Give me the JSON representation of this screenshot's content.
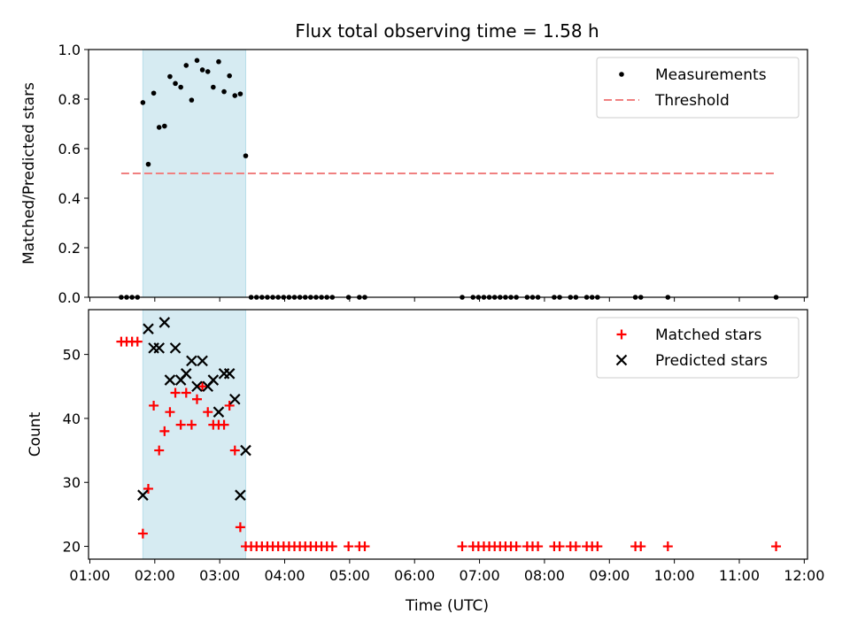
{
  "chart_data": {
    "title": "Flux total observing time = 1.58 h",
    "x_label": "Time (UTC)",
    "x_range": [
      "01:00",
      "12:00"
    ],
    "x_ticks": [
      "01:00",
      "02:00",
      "03:00",
      "04:00",
      "05:00",
      "06:00",
      "07:00",
      "08:00",
      "09:00",
      "10:00",
      "11:00",
      "12:00"
    ],
    "observing_span": {
      "start": "01:49",
      "end": "03:24",
      "color": "#add8e6"
    },
    "panels": [
      {
        "type": "scatter",
        "y_label": "Matched/Predicted stars",
        "ylim": [
          0,
          1.0
        ],
        "y_ticks": [
          "0.0",
          "0.2",
          "0.4",
          "0.6",
          "0.8",
          "1.0"
        ],
        "legend_position": "upper right",
        "series": [
          {
            "name": "Measurements",
            "marker": "dot",
            "color": "#000000",
            "points": [
              [
                "01:29",
                0
              ],
              [
                "01:34",
                0
              ],
              [
                "01:39",
                0
              ],
              [
                "01:44",
                0
              ],
              [
                "01:49",
                0.786
              ],
              [
                "01:54",
                0.537
              ],
              [
                "01:59",
                0.824
              ],
              [
                "02:04",
                0.686
              ],
              [
                "02:09",
                0.691
              ],
              [
                "02:14",
                0.891
              ],
              [
                "02:19",
                0.863
              ],
              [
                "02:24",
                0.848
              ],
              [
                "02:29",
                0.936
              ],
              [
                "02:34",
                0.796
              ],
              [
                "02:39",
                0.956
              ],
              [
                "02:44",
                0.918
              ],
              [
                "02:49",
                0.911
              ],
              [
                "02:54",
                0.848
              ],
              [
                "02:59",
                0.951
              ],
              [
                "03:04",
                0.83
              ],
              [
                "03:09",
                0.894
              ],
              [
                "03:14",
                0.814
              ],
              [
                "03:19",
                0.821
              ],
              [
                "03:24",
                0.571
              ],
              [
                "03:29",
                0
              ],
              [
                "03:34",
                0
              ],
              [
                "03:39",
                0
              ],
              [
                "03:44",
                0
              ],
              [
                "03:49",
                0
              ],
              [
                "03:54",
                0
              ],
              [
                "03:59",
                0
              ],
              [
                "04:04",
                0
              ],
              [
                "04:09",
                0
              ],
              [
                "04:14",
                0
              ],
              [
                "04:19",
                0
              ],
              [
                "04:24",
                0
              ],
              [
                "04:29",
                0
              ],
              [
                "04:34",
                0
              ],
              [
                "04:39",
                0
              ],
              [
                "04:44",
                0
              ],
              [
                "04:59",
                0
              ],
              [
                "05:09",
                0
              ],
              [
                "05:14",
                0
              ],
              [
                "06:44",
                0
              ],
              [
                "06:54",
                0
              ],
              [
                "06:59",
                0
              ],
              [
                "07:04",
                0
              ],
              [
                "07:09",
                0
              ],
              [
                "07:14",
                0
              ],
              [
                "07:19",
                0
              ],
              [
                "07:24",
                0
              ],
              [
                "07:29",
                0
              ],
              [
                "07:34",
                0
              ],
              [
                "07:44",
                0
              ],
              [
                "07:49",
                0
              ],
              [
                "07:54",
                0
              ],
              [
                "08:09",
                0
              ],
              [
                "08:14",
                0
              ],
              [
                "08:24",
                0
              ],
              [
                "08:29",
                0
              ],
              [
                "08:39",
                0
              ],
              [
                "08:44",
                0
              ],
              [
                "08:49",
                0
              ],
              [
                "09:24",
                0
              ],
              [
                "09:29",
                0
              ],
              [
                "09:54",
                0
              ],
              [
                "11:34",
                0
              ]
            ]
          },
          {
            "name": "Threshold",
            "marker": "dashed-line",
            "color": "#f08080",
            "points": [
              [
                "01:29",
                0.5
              ],
              [
                "11:34",
                0.5
              ]
            ]
          }
        ]
      },
      {
        "type": "scatter",
        "y_label": "Count",
        "ylim": [
          18,
          57
        ],
        "y_ticks": [
          "20",
          "30",
          "40",
          "50"
        ],
        "legend_position": "upper right",
        "series": [
          {
            "name": "Matched stars",
            "marker": "plus",
            "color": "#ff0000",
            "points": [
              [
                "01:29",
                52
              ],
              [
                "01:34",
                52
              ],
              [
                "01:39",
                52
              ],
              [
                "01:44",
                52
              ],
              [
                "01:49",
                22
              ],
              [
                "01:54",
                29
              ],
              [
                "01:59",
                42
              ],
              [
                "02:04",
                35
              ],
              [
                "02:09",
                38
              ],
              [
                "02:14",
                41
              ],
              [
                "02:19",
                44
              ],
              [
                "02:24",
                39
              ],
              [
                "02:29",
                44
              ],
              [
                "02:34",
                39
              ],
              [
                "02:39",
                43
              ],
              [
                "02:44",
                45
              ],
              [
                "02:49",
                41
              ],
              [
                "02:54",
                39
              ],
              [
                "02:59",
                39
              ],
              [
                "03:04",
                39
              ],
              [
                "03:09",
                42
              ],
              [
                "03:14",
                35
              ],
              [
                "03:19",
                23
              ],
              [
                "03:24",
                20
              ],
              [
                "03:29",
                20
              ],
              [
                "03:34",
                20
              ],
              [
                "03:39",
                20
              ],
              [
                "03:44",
                20
              ],
              [
                "03:49",
                20
              ],
              [
                "03:54",
                20
              ],
              [
                "03:59",
                20
              ],
              [
                "04:04",
                20
              ],
              [
                "04:09",
                20
              ],
              [
                "04:14",
                20
              ],
              [
                "04:19",
                20
              ],
              [
                "04:24",
                20
              ],
              [
                "04:29",
                20
              ],
              [
                "04:34",
                20
              ],
              [
                "04:39",
                20
              ],
              [
                "04:44",
                20
              ],
              [
                "04:59",
                20
              ],
              [
                "05:09",
                20
              ],
              [
                "05:14",
                20
              ],
              [
                "06:44",
                20
              ],
              [
                "06:54",
                20
              ],
              [
                "06:59",
                20
              ],
              [
                "07:04",
                20
              ],
              [
                "07:09",
                20
              ],
              [
                "07:14",
                20
              ],
              [
                "07:19",
                20
              ],
              [
                "07:24",
                20
              ],
              [
                "07:29",
                20
              ],
              [
                "07:34",
                20
              ],
              [
                "07:44",
                20
              ],
              [
                "07:49",
                20
              ],
              [
                "07:54",
                20
              ],
              [
                "08:09",
                20
              ],
              [
                "08:14",
                20
              ],
              [
                "08:24",
                20
              ],
              [
                "08:29",
                20
              ],
              [
                "08:39",
                20
              ],
              [
                "08:44",
                20
              ],
              [
                "08:49",
                20
              ],
              [
                "09:24",
                20
              ],
              [
                "09:29",
                20
              ],
              [
                "09:54",
                20
              ],
              [
                "11:34",
                20
              ]
            ]
          },
          {
            "name": "Predicted stars",
            "marker": "x",
            "color": "#000000",
            "points": [
              [
                "01:49",
                28
              ],
              [
                "01:54",
                54
              ],
              [
                "01:59",
                51
              ],
              [
                "02:04",
                51
              ],
              [
                "02:09",
                55
              ],
              [
                "02:14",
                46
              ],
              [
                "02:19",
                51
              ],
              [
                "02:24",
                46
              ],
              [
                "02:29",
                47
              ],
              [
                "02:34",
                49
              ],
              [
                "02:39",
                45
              ],
              [
                "02:44",
                49
              ],
              [
                "02:49",
                45
              ],
              [
                "02:54",
                46
              ],
              [
                "02:59",
                41
              ],
              [
                "03:04",
                47
              ],
              [
                "03:09",
                47
              ],
              [
                "03:14",
                43
              ],
              [
                "03:19",
                28
              ],
              [
                "03:24",
                35
              ]
            ]
          }
        ]
      }
    ]
  }
}
